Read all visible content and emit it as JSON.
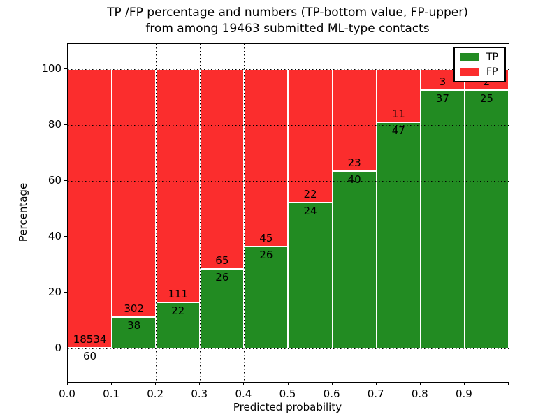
{
  "title": {
    "line1": "TP /FP percentage and numbers (TP-bottom value, FP-upper)",
    "line2": "from among 19463 submitted ML-type contacts"
  },
  "axes": {
    "xlabel": "Predicted probability",
    "ylabel": "Percentage",
    "x_tick_labels": [
      "0.0",
      "0.1",
      "0.2",
      "0.3",
      "0.4",
      "0.5",
      "0.6",
      "0.7",
      "0.8",
      "0.9"
    ],
    "y_tick_labels": [
      "0",
      "20",
      "40",
      "60",
      "80",
      "100"
    ],
    "y_tick_values": [
      0,
      20,
      40,
      60,
      80,
      100
    ]
  },
  "legend": {
    "items": [
      {
        "label": "TP",
        "color": "#228b22"
      },
      {
        "label": "FP",
        "color": "#fb2d2d"
      }
    ]
  },
  "chart_data": {
    "type": "bar",
    "stacked": true,
    "normalized": "each bar scaled to 100%",
    "title": "TP /FP percentage and numbers (TP-bottom value, FP-upper) from among 19463 submitted ML-type contacts",
    "xlabel": "Predicted probability",
    "ylabel": "Percentage",
    "categories": [
      "0.0-0.1",
      "0.1-0.2",
      "0.2-0.3",
      "0.3-0.4",
      "0.4-0.5",
      "0.5-0.6",
      "0.6-0.7",
      "0.7-0.8",
      "0.8-0.9",
      "0.9-1.0"
    ],
    "bin_edges": [
      0.0,
      0.1,
      0.2,
      0.3,
      0.4,
      0.5,
      0.6,
      0.7,
      0.8,
      0.9,
      1.0
    ],
    "series": [
      {
        "name": "TP",
        "color": "#228b22",
        "counts": [
          60,
          38,
          22,
          26,
          26,
          24,
          40,
          47,
          37,
          25
        ]
      },
      {
        "name": "FP",
        "color": "#fb2d2d",
        "counts": [
          18534,
          302,
          111,
          65,
          45,
          22,
          23,
          11,
          3,
          2
        ]
      }
    ],
    "total_contacts": 19463,
    "xlim": [
      0.0,
      1.0
    ],
    "ylim": [
      -12,
      109
    ],
    "grid": true,
    "legend_position": "upper right"
  }
}
